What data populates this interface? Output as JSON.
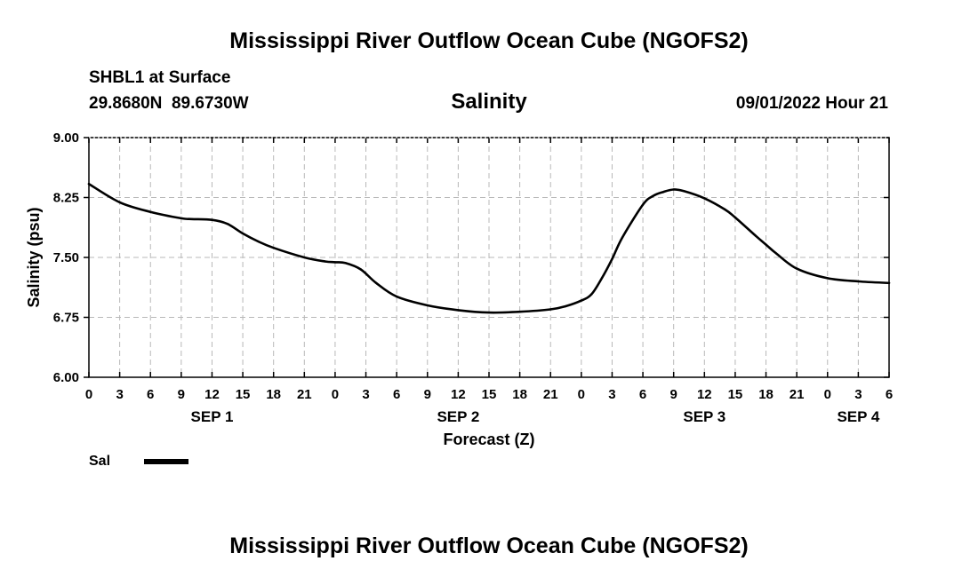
{
  "page": {
    "title": "Mississippi River Outflow Ocean Cube (NGOFS2)",
    "footer_title": "Mississippi River Outflow Ocean Cube (NGOFS2)",
    "station": "SHBL1 at Surface",
    "coordinates": "29.8680N  89.6730W",
    "datetime": "09/01/2022 Hour 21"
  },
  "chart_data": {
    "type": "line",
    "title": "Salinity",
    "xlabel": "Forecast (Z)",
    "ylabel": "Salinity (psu)",
    "xlim": [
      0,
      78
    ],
    "ylim": [
      6.0,
      9.0
    ],
    "yticks": [
      "6.00",
      "6.75",
      "7.50",
      "8.25",
      "9.00"
    ],
    "ytick_values": [
      6.0,
      6.75,
      7.5,
      8.25,
      9.0
    ],
    "xticks": [
      "0",
      "3",
      "6",
      "9",
      "12",
      "15",
      "18",
      "21",
      "0",
      "3",
      "6",
      "9",
      "12",
      "15",
      "18",
      "21",
      "0",
      "3",
      "6",
      "9",
      "12",
      "15",
      "18",
      "21",
      "0",
      "3",
      "6"
    ],
    "date_labels": [
      {
        "label": "SEP 1",
        "hour": 12
      },
      {
        "label": "SEP 2",
        "hour": 36
      },
      {
        "label": "SEP 3",
        "hour": 60
      },
      {
        "label": "SEP 4",
        "hour": 75
      }
    ],
    "grid": true,
    "series": [
      {
        "name": "Sal",
        "color": "#000000",
        "x": [
          0,
          3,
          6,
          9,
          10,
          12,
          13.5,
          15,
          16.5,
          18,
          21,
          23,
          24,
          25,
          26.5,
          28,
          30,
          33,
          36,
          39,
          42,
          45,
          46.5,
          48,
          49,
          50,
          51,
          52,
          54,
          55,
          56,
          57,
          58,
          60,
          62,
          63,
          65,
          66,
          67,
          69,
          72,
          75,
          78
        ],
        "values": [
          8.42,
          8.19,
          8.07,
          7.99,
          7.98,
          7.97,
          7.92,
          7.8,
          7.7,
          7.62,
          7.5,
          7.45,
          7.44,
          7.43,
          7.35,
          7.18,
          7.01,
          6.9,
          6.84,
          6.81,
          6.82,
          6.85,
          6.89,
          6.96,
          7.04,
          7.24,
          7.48,
          7.75,
          8.16,
          8.27,
          8.32,
          8.35,
          8.33,
          8.24,
          8.1,
          8.0,
          7.77,
          7.66,
          7.55,
          7.36,
          7.24,
          7.2,
          7.18
        ]
      }
    ],
    "legend": {
      "label": "Sal",
      "placement": "bottom-left"
    }
  }
}
